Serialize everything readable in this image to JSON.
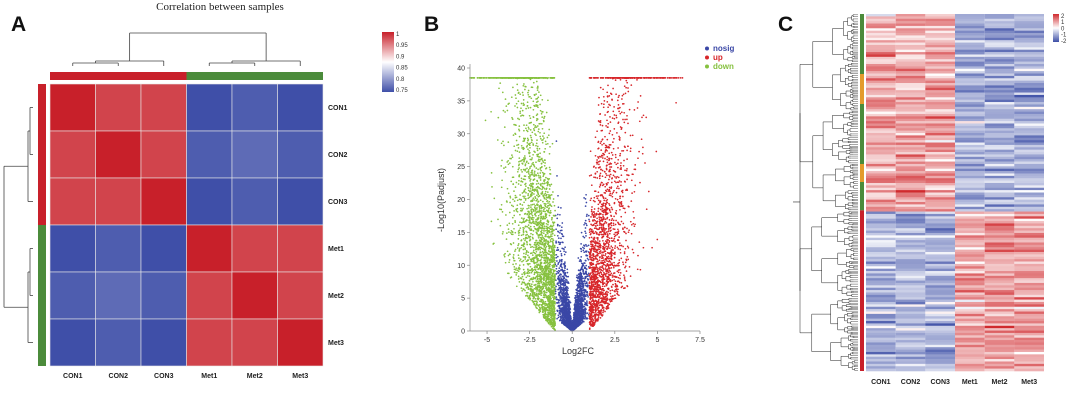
{
  "chart_data": [
    {
      "panel": "A",
      "type": "heatmap",
      "title": "Correlation between samples",
      "rows": [
        "CON1",
        "CON2",
        "CON3",
        "Met1",
        "Met2",
        "Met3"
      ],
      "cols": [
        "CON1",
        "CON2",
        "CON3",
        "Met1",
        "Met2",
        "Met3"
      ],
      "values": [
        [
          1.0,
          0.98,
          0.98,
          0.75,
          0.76,
          0.75
        ],
        [
          0.98,
          1.0,
          0.98,
          0.76,
          0.77,
          0.76
        ],
        [
          0.98,
          0.98,
          1.0,
          0.75,
          0.76,
          0.75
        ],
        [
          0.75,
          0.76,
          0.75,
          1.0,
          0.98,
          0.98
        ],
        [
          0.76,
          0.77,
          0.76,
          0.98,
          1.0,
          0.98
        ],
        [
          0.75,
          0.76,
          0.75,
          0.98,
          0.98,
          1.0
        ]
      ],
      "colorbar": {
        "ticks": [
          "1",
          "0.95",
          "0.9",
          "0.85",
          "0.8",
          "0.75"
        ],
        "range": [
          0.75,
          1.0
        ],
        "colors": [
          "#3f4fa8",
          "#ffffff",
          "#c8202a"
        ]
      },
      "group_colors": {
        "CON": "#c8202a",
        "Met": "#4b8b3b"
      }
    },
    {
      "panel": "B",
      "type": "scatter",
      "xlabel": "Log2FC",
      "ylabel": "-Log10(Padjust)",
      "xlim": [
        -6,
        7.5
      ],
      "ylim": [
        0,
        40
      ],
      "xticks": [
        -5,
        -2.5,
        0,
        2.5,
        5,
        7.5
      ],
      "xtick_labels": [
        "-5",
        "-2.5",
        "0",
        "2.5",
        "5",
        "7.5"
      ],
      "yticks": [
        0,
        5,
        10,
        15,
        20,
        25,
        30,
        35,
        40
      ],
      "ymax_capped": 38.5,
      "series": [
        {
          "name": "nosig",
          "color": "#3a47a6",
          "approx_points": 2600
        },
        {
          "name": "up",
          "color": "#d7262a",
          "approx_points": 1800
        },
        {
          "name": "down",
          "color": "#86c13f",
          "approx_points": 2400
        }
      ]
    },
    {
      "panel": "C",
      "type": "heatmap",
      "cols": [
        "CON1",
        "CON2",
        "CON3",
        "Met1",
        "Met2",
        "Met3"
      ],
      "clusters": [
        {
          "pattern": "high in CON, low in Met",
          "fraction": 0.55
        },
        {
          "pattern": "low in CON, high in Met",
          "fraction": 0.45
        }
      ],
      "colorbar": {
        "ticks": [
          "2",
          "1",
          "0",
          "-1",
          "-2"
        ],
        "range": [
          -2,
          2
        ],
        "colors": [
          "#3c4ea6",
          "#ffffff",
          "#d02a2e"
        ]
      }
    }
  ]
}
